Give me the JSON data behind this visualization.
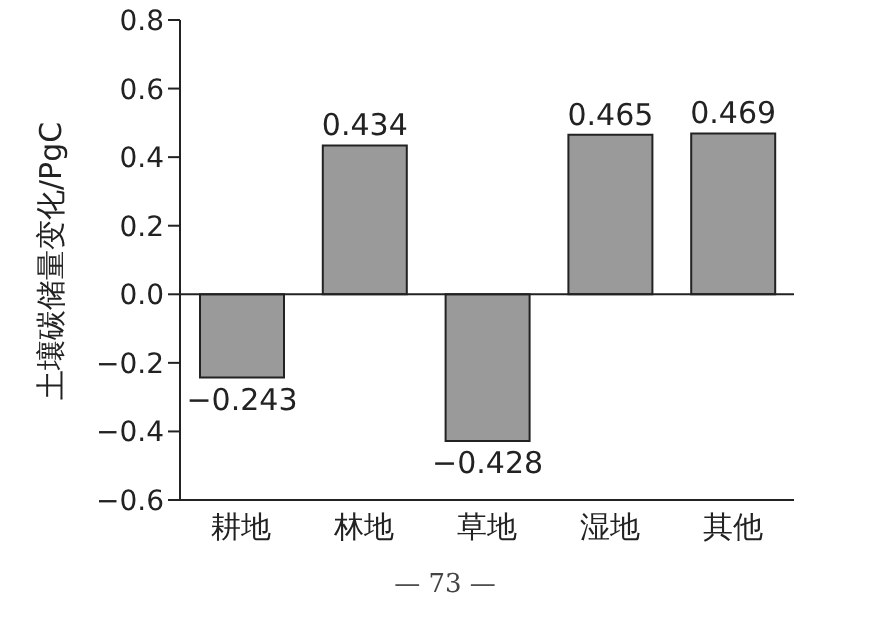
{
  "chart_data": {
    "type": "bar",
    "ylabel": "土壤碳储量变化/PgC",
    "categories": [
      "耕地",
      "林地",
      "草地",
      "湿地",
      "其他"
    ],
    "values": [
      -0.243,
      0.434,
      -0.428,
      0.465,
      0.469
    ],
    "value_labels": [
      "−0.243",
      "0.434",
      "−0.428",
      "0.465",
      "0.469"
    ],
    "color": "#9a9a9a",
    "ylim": [
      -0.6,
      0.8
    ],
    "yticks": [
      {
        "value": 0.8,
        "label": "0.8"
      },
      {
        "value": 0.6,
        "label": "0.6"
      },
      {
        "value": 0.4,
        "label": "0.4"
      },
      {
        "value": 0.2,
        "label": "0.2"
      },
      {
        "value": 0,
        "label": "0.0"
      },
      {
        "value": -0.2,
        "label": "−0.2"
      },
      {
        "value": -0.4,
        "label": "−0.4"
      },
      {
        "value": -0.6,
        "label": "−0.6"
      }
    ],
    "ref_lines": [
      {
        "axis": "y",
        "value": 0,
        "color": "#222222"
      }
    ],
    "grid": false,
    "legend": false,
    "annotations": [
      "— 73 —"
    ]
  }
}
